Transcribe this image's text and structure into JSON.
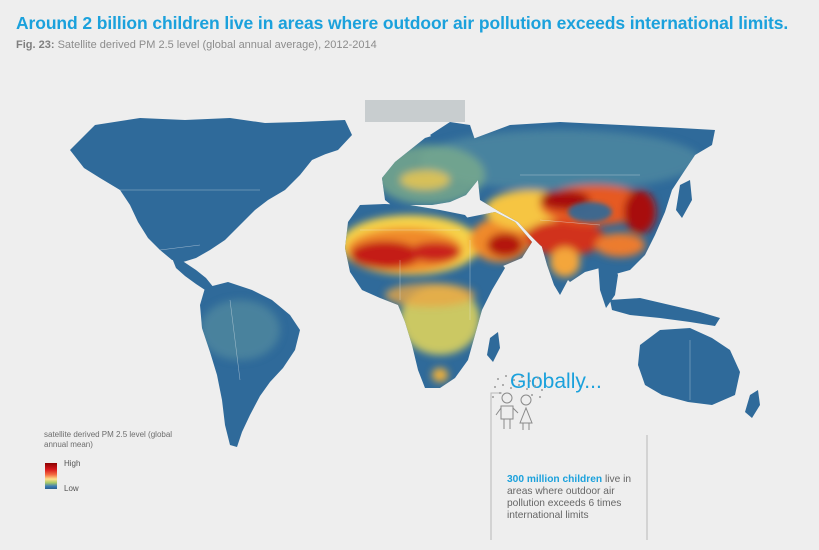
{
  "header": {
    "title": "Around 2 billion children live in areas where outdoor air pollution exceeds international limits.",
    "fig_label": "Fig. 23:",
    "fig_caption": "Satellite derived PM 2.5 level (global annual average), 2012-2014"
  },
  "legend": {
    "title": "satellite derived PM 2.5 level (global annual mean)",
    "high_label": "High",
    "low_label": "Low",
    "scale_colors": [
      "#8b0000",
      "#d7191c",
      "#f46d43",
      "#fee08b",
      "#a6c86a",
      "#3a7ab8",
      "#2c5f8a"
    ]
  },
  "callout": {
    "heading": "Globally...",
    "highlight": "300 million children",
    "text": " live in areas where outdoor air pollution exceeds 6 times international limits",
    "icon": "two-children-icon"
  },
  "colors": {
    "accent": "#1ba1dc",
    "ocean": "#eeeeee",
    "low_pollution": "#2f6a9a",
    "high_pollution": "#b80f0f"
  }
}
